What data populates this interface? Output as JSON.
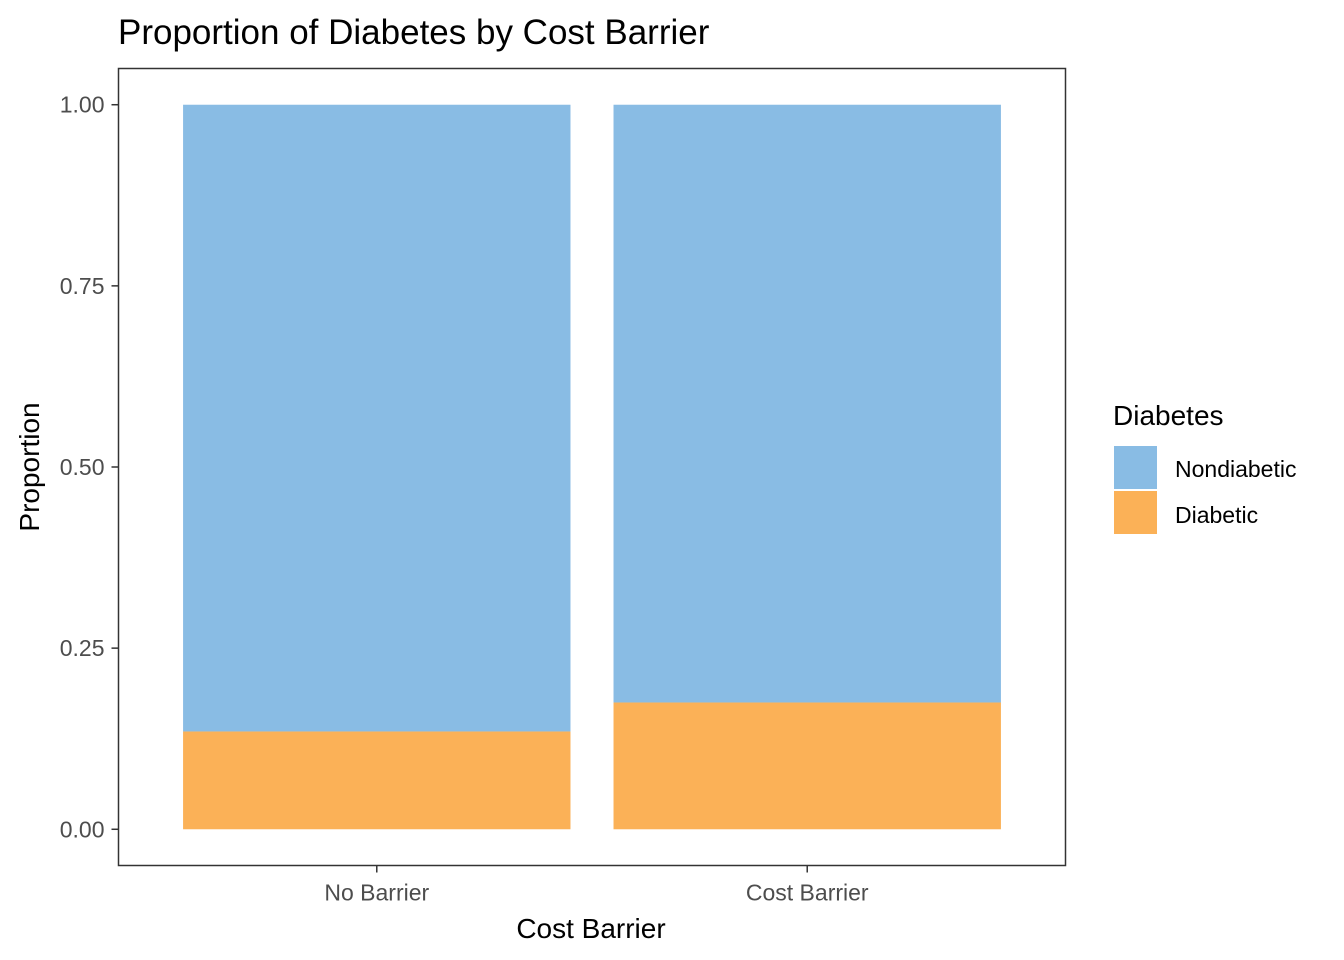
{
  "chart_data": {
    "type": "bar",
    "stacked": true,
    "title": "Proportion of Diabetes by Cost Barrier",
    "xlabel": "Cost Barrier",
    "ylabel": "Proportion",
    "categories": [
      "No Barrier",
      "Cost Barrier"
    ],
    "series": [
      {
        "name": "Diabetic",
        "values": [
          0.135,
          0.175
        ],
        "color": "#FBB157"
      },
      {
        "name": "Nondiabetic",
        "values": [
          0.865,
          0.825
        ],
        "color": "#89BCE4"
      }
    ],
    "ylim": [
      -0.05,
      1.05
    ],
    "yticks": [
      0,
      0.25,
      0.5,
      0.75,
      1
    ],
    "ytick_labels": [
      "0.00",
      "0.25",
      "0.50",
      "0.75",
      "1.00"
    ],
    "legend": {
      "title": "Diabetes",
      "entries": [
        "Nondiabetic",
        "Diabetic"
      ],
      "position": "right"
    },
    "grid": false
  }
}
